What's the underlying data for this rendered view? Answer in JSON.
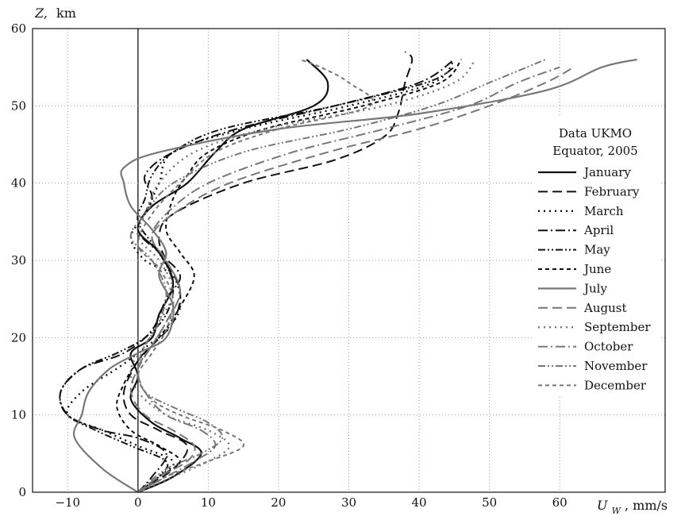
{
  "chart_data": {
    "type": "line",
    "ylabel_var": "Z,",
    "ylabel_unit": "km",
    "xlabel_var": "U",
    "xlabel_sub": "W",
    "xlabel_unit": ", mm/s",
    "xlim": [
      -15,
      75
    ],
    "ylim": [
      0,
      60
    ],
    "xticks": [
      -10,
      0,
      10,
      20,
      30,
      40,
      50,
      60
    ],
    "yticks": [
      0,
      10,
      20,
      30,
      40,
      50,
      60
    ],
    "grid": true,
    "legend_position": "right",
    "legend_title": [
      "Data UKMO",
      "Equator, 2005"
    ],
    "series": [
      {
        "name": "January",
        "color": "#111111",
        "dash": "",
        "width": 2.2,
        "points": [
          [
            0,
            0
          ],
          [
            5,
            2
          ],
          [
            9,
            5
          ],
          [
            6,
            7
          ],
          [
            2,
            9
          ],
          [
            -1,
            12
          ],
          [
            0,
            15
          ],
          [
            -1,
            18
          ],
          [
            2,
            20
          ],
          [
            3,
            23
          ],
          [
            5,
            27
          ],
          [
            3,
            31
          ],
          [
            0,
            34
          ],
          [
            2,
            37
          ],
          [
            7,
            40
          ],
          [
            11,
            44
          ],
          [
            15,
            47
          ],
          [
            25,
            50
          ],
          [
            27,
            53
          ],
          [
            24,
            56
          ]
        ]
      },
      {
        "name": "February",
        "color": "#111111",
        "dash": "12,6",
        "width": 2,
        "points": [
          [
            0,
            0
          ],
          [
            5,
            3
          ],
          [
            7,
            6
          ],
          [
            3,
            8
          ],
          [
            -1,
            10
          ],
          [
            -2,
            13
          ],
          [
            0,
            17
          ],
          [
            2,
            19
          ],
          [
            5,
            22
          ],
          [
            6,
            26
          ],
          [
            4,
            30
          ],
          [
            3,
            33
          ],
          [
            5,
            36
          ],
          [
            15,
            40
          ],
          [
            28,
            43
          ],
          [
            35,
            46
          ],
          [
            37,
            49
          ],
          [
            38,
            53
          ],
          [
            39,
            56
          ],
          [
            38,
            57
          ]
        ]
      },
      {
        "name": "March",
        "color": "#111111",
        "dash": "2,5",
        "width": 2.4,
        "points": [
          [
            0,
            0
          ],
          [
            3,
            2
          ],
          [
            5,
            4
          ],
          [
            0,
            6
          ],
          [
            -5,
            8
          ],
          [
            -10,
            10
          ],
          [
            -8,
            13
          ],
          [
            -3,
            16
          ],
          [
            0,
            18
          ],
          [
            4,
            21
          ],
          [
            6,
            24
          ],
          [
            5,
            28
          ],
          [
            1,
            30
          ],
          [
            -1,
            33
          ],
          [
            1,
            36
          ],
          [
            3,
            40
          ],
          [
            5,
            44
          ],
          [
            15,
            47
          ],
          [
            30,
            50
          ],
          [
            42,
            53
          ],
          [
            45,
            56
          ]
        ]
      },
      {
        "name": "April",
        "color": "#111111",
        "dash": "12,4,2,4",
        "width": 2,
        "points": [
          [
            0,
            0
          ],
          [
            2,
            2
          ],
          [
            4,
            5
          ],
          [
            0,
            7
          ],
          [
            -5,
            8
          ],
          [
            -10,
            10
          ],
          [
            -11,
            13
          ],
          [
            -8,
            16
          ],
          [
            -2,
            18
          ],
          [
            2,
            21
          ],
          [
            4,
            25
          ],
          [
            6,
            28
          ],
          [
            3,
            31
          ],
          [
            0,
            34
          ],
          [
            2,
            38
          ],
          [
            1,
            41
          ],
          [
            5,
            44
          ],
          [
            14,
            47
          ],
          [
            28,
            50
          ],
          [
            40,
            53
          ],
          [
            45,
            56
          ]
        ]
      },
      {
        "name": "May",
        "color": "#111111",
        "dash": "9,3,2,3,2,3",
        "width": 2,
        "points": [
          [
            0,
            0
          ],
          [
            3,
            2
          ],
          [
            4,
            4
          ],
          [
            -1,
            6
          ],
          [
            -6,
            8
          ],
          [
            -10,
            10
          ],
          [
            -11,
            13
          ],
          [
            -8,
            16
          ],
          [
            -3,
            18
          ],
          [
            1,
            20
          ],
          [
            4,
            23
          ],
          [
            5,
            27
          ],
          [
            3,
            31
          ],
          [
            0,
            35
          ],
          [
            1,
            38
          ],
          [
            2,
            41
          ],
          [
            5,
            44
          ],
          [
            12,
            47
          ],
          [
            28,
            50
          ],
          [
            41,
            53
          ],
          [
            45,
            55
          ]
        ]
      },
      {
        "name": "June",
        "color": "#111111",
        "dash": "5,4",
        "width": 2,
        "points": [
          [
            0,
            0
          ],
          [
            3,
            2
          ],
          [
            6,
            4
          ],
          [
            3,
            6
          ],
          [
            -1,
            8
          ],
          [
            -3,
            11
          ],
          [
            -2,
            14
          ],
          [
            0,
            17
          ],
          [
            3,
            20
          ],
          [
            6,
            24
          ],
          [
            8,
            28
          ],
          [
            6,
            31
          ],
          [
            4,
            34
          ],
          [
            5,
            38
          ],
          [
            7,
            41
          ],
          [
            10,
            44
          ],
          [
            18,
            47
          ],
          [
            32,
            50
          ],
          [
            43,
            53
          ],
          [
            46,
            56
          ]
        ]
      },
      {
        "name": "July",
        "color": "#777777",
        "dash": "",
        "width": 2.2,
        "points": [
          [
            0,
            0
          ],
          [
            -5,
            3
          ],
          [
            -9,
            7
          ],
          [
            -8,
            10
          ],
          [
            -7,
            13
          ],
          [
            -4,
            16
          ],
          [
            0,
            18
          ],
          [
            4,
            20
          ],
          [
            5,
            24
          ],
          [
            3,
            28
          ],
          [
            4,
            31
          ],
          [
            2,
            34
          ],
          [
            -1,
            37
          ],
          [
            -2,
            40
          ],
          [
            -2,
            42
          ],
          [
            3,
            44
          ],
          [
            20,
            47
          ],
          [
            40,
            49
          ],
          [
            58,
            52
          ],
          [
            66,
            55
          ],
          [
            71,
            56
          ]
        ]
      },
      {
        "name": "August",
        "color": "#777777",
        "dash": "12,6",
        "width": 2,
        "points": [
          [
            0,
            0
          ],
          [
            3,
            2
          ],
          [
            7,
            4
          ],
          [
            8,
            6
          ],
          [
            5,
            8
          ],
          [
            1,
            10
          ],
          [
            -1,
            13
          ],
          [
            0,
            16
          ],
          [
            2,
            19
          ],
          [
            4,
            22
          ],
          [
            6,
            26
          ],
          [
            4,
            30
          ],
          [
            2,
            33
          ],
          [
            5,
            36
          ],
          [
            13,
            40
          ],
          [
            27,
            44
          ],
          [
            40,
            47
          ],
          [
            50,
            50
          ],
          [
            58,
            53
          ],
          [
            62,
            55
          ]
        ]
      },
      {
        "name": "September",
        "color": "#777777",
        "dash": "2,5",
        "width": 2.4,
        "points": [
          [
            0,
            0
          ],
          [
            5,
            2
          ],
          [
            10,
            4
          ],
          [
            13,
            6
          ],
          [
            10,
            8
          ],
          [
            4,
            10
          ],
          [
            0,
            13
          ],
          [
            -1,
            16
          ],
          [
            1,
            19
          ],
          [
            3,
            22
          ],
          [
            5,
            26
          ],
          [
            3,
            30
          ],
          [
            0,
            33
          ],
          [
            1,
            36
          ],
          [
            3,
            40
          ],
          [
            8,
            44
          ],
          [
            18,
            47
          ],
          [
            35,
            50
          ],
          [
            45,
            53
          ],
          [
            48,
            56
          ]
        ]
      },
      {
        "name": "October",
        "color": "#777777",
        "dash": "12,4,2,4",
        "width": 2,
        "points": [
          [
            0,
            0
          ],
          [
            4,
            2
          ],
          [
            8,
            4
          ],
          [
            11,
            6
          ],
          [
            9,
            8
          ],
          [
            4,
            10
          ],
          [
            1,
            13
          ],
          [
            0,
            16
          ],
          [
            2,
            19
          ],
          [
            4,
            22
          ],
          [
            6,
            26
          ],
          [
            4,
            30
          ],
          [
            2,
            33
          ],
          [
            4,
            36
          ],
          [
            10,
            40
          ],
          [
            22,
            44
          ],
          [
            35,
            47
          ],
          [
            47,
            50
          ],
          [
            54,
            53
          ],
          [
            60,
            55
          ]
        ]
      },
      {
        "name": "November",
        "color": "#777777",
        "dash": "9,3,2,3,2,3",
        "width": 2,
        "points": [
          [
            0,
            0
          ],
          [
            4,
            3
          ],
          [
            9,
            5
          ],
          [
            12,
            7
          ],
          [
            10,
            9
          ],
          [
            5,
            11
          ],
          [
            1,
            13
          ],
          [
            0,
            16
          ],
          [
            1,
            19
          ],
          [
            3,
            22
          ],
          [
            4,
            26
          ],
          [
            2,
            30
          ],
          [
            -1,
            33
          ],
          [
            1,
            36
          ],
          [
            5,
            40
          ],
          [
            15,
            44
          ],
          [
            30,
            47
          ],
          [
            42,
            50
          ],
          [
            50,
            53
          ],
          [
            58,
            56
          ]
        ]
      },
      {
        "name": "December",
        "color": "#777777",
        "dash": "5,4",
        "width": 2,
        "points": [
          [
            0,
            0
          ],
          [
            4,
            2
          ],
          [
            10,
            4
          ],
          [
            15,
            6
          ],
          [
            12,
            8
          ],
          [
            6,
            10
          ],
          [
            2,
            12
          ],
          [
            0,
            15
          ],
          [
            2,
            18
          ],
          [
            4,
            21
          ],
          [
            5,
            25
          ],
          [
            3,
            29
          ],
          [
            0,
            32
          ],
          [
            2,
            36
          ],
          [
            6,
            40
          ],
          [
            11,
            44
          ],
          [
            20,
            47
          ],
          [
            33,
            50
          ],
          [
            30,
            53
          ],
          [
            26,
            55
          ],
          [
            23,
            56
          ]
        ]
      }
    ]
  }
}
